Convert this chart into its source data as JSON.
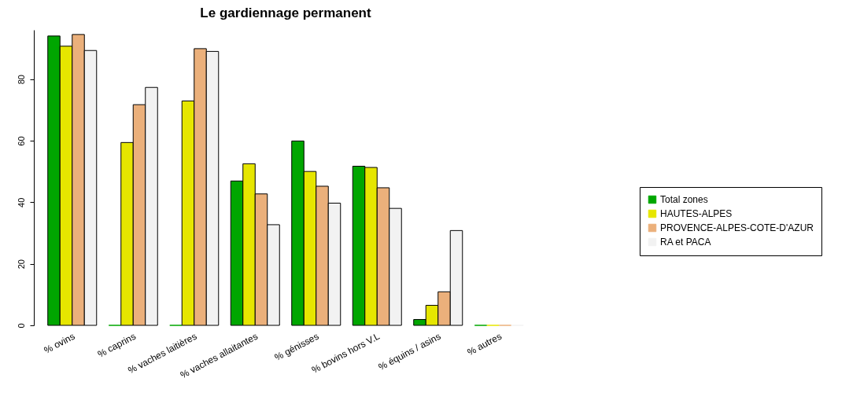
{
  "chart_data": {
    "type": "bar",
    "title": "Le gardiennage permanent",
    "categories": [
      "% ovins",
      "% caprins",
      "% vaches laitières",
      "% vaches allaitantes",
      "% génisses",
      "% bovins hors V.L",
      "% équins / asins",
      "% autres"
    ],
    "series": [
      {
        "name": "Total zones",
        "color": "#00a600",
        "values": [
          94.0,
          0,
          0,
          46.9,
          59.9,
          51.7,
          1.9,
          0
        ]
      },
      {
        "name": "HAUTES-ALPES",
        "color": "#e6e600",
        "values": [
          90.7,
          59.4,
          72.9,
          52.5,
          50.0,
          51.3,
          6.5,
          0
        ]
      },
      {
        "name": "PROVENCE-ALPES-COTE-D'AZUR",
        "color": "#ebb07b",
        "values": [
          94.5,
          71.7,
          89.9,
          42.7,
          45.2,
          44.7,
          10.9,
          0
        ]
      },
      {
        "name": "RA et PACA",
        "color": "#f2f2f2",
        "values": [
          89.3,
          77.3,
          89.0,
          32.7,
          39.7,
          38.0,
          30.8,
          0
        ]
      }
    ],
    "ylim": [
      0,
      96
    ],
    "yticks": [
      0,
      20,
      40,
      60,
      80
    ],
    "grid": false,
    "legend": "right"
  }
}
